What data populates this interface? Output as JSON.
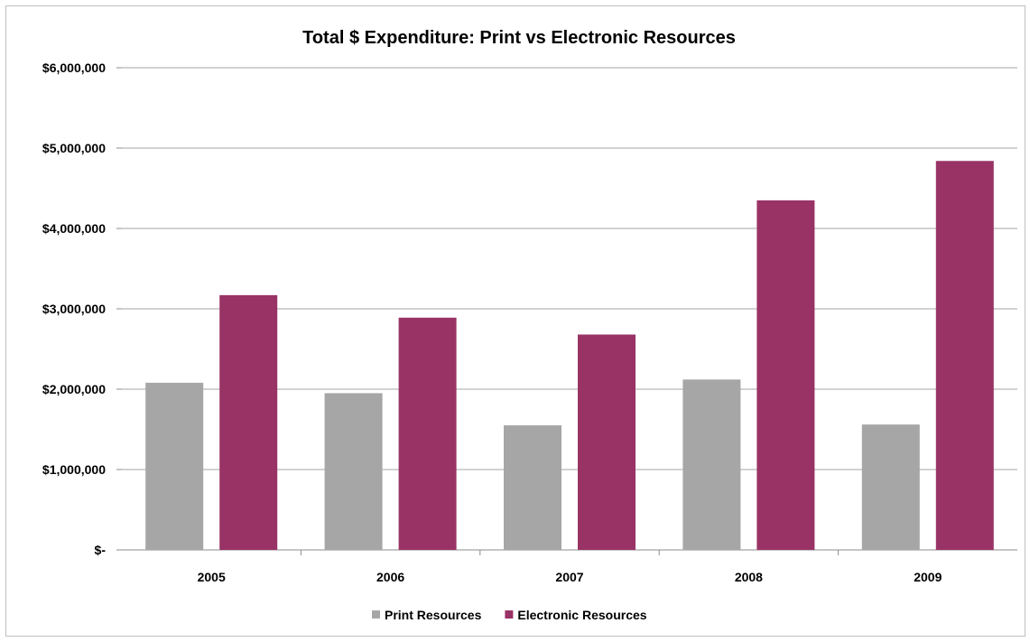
{
  "chart_data": {
    "type": "bar",
    "title": "Total $ Expenditure:  Print vs Electronic Resources",
    "xlabel": "",
    "ylabel": "",
    "categories": [
      "2005",
      "2006",
      "2007",
      "2008",
      "2009"
    ],
    "series": [
      {
        "name": "Print Resources",
        "color": "#a6a6a6",
        "values": [
          2080000,
          1950000,
          1550000,
          2120000,
          1560000
        ]
      },
      {
        "name": "Electronic Resources",
        "color": "#993366",
        "values": [
          3170000,
          2890000,
          2680000,
          4350000,
          4840000
        ]
      }
    ],
    "ylim": [
      0,
      6000000
    ],
    "yticks": [
      {
        "value": 0,
        "label": "$-"
      },
      {
        "value": 1000000,
        "label": "$1,000,000"
      },
      {
        "value": 2000000,
        "label": "$2,000,000"
      },
      {
        "value": 3000000,
        "label": "$3,000,000"
      },
      {
        "value": 4000000,
        "label": "$4,000,000"
      },
      {
        "value": 5000000,
        "label": "$5,000,000"
      },
      {
        "value": 6000000,
        "label": "$6,000,000"
      }
    ],
    "grid": true,
    "legend_position": "bottom-center"
  }
}
